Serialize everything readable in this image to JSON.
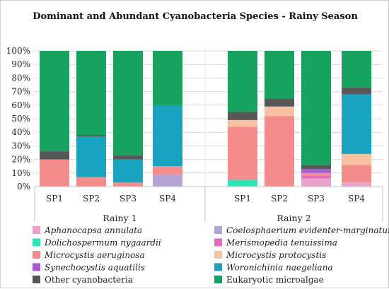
{
  "chart_data": {
    "type": "bar",
    "stacked": true,
    "normalized": true,
    "title": "Dominant and Abundant Cyanobacteria Species - Rainy Season",
    "ylim": [
      0,
      100
    ],
    "yticks": [
      "0%",
      "10%",
      "20%",
      "30%",
      "40%",
      "50%",
      "60%",
      "70%",
      "80%",
      "90%",
      "100%"
    ],
    "groups": [
      {
        "label": "Rainy 1",
        "categories": [
          "SP1",
          "SP2",
          "SP3",
          "SP4"
        ]
      },
      {
        "label": "Rainy 2",
        "categories": [
          "SP1",
          "SP2",
          "SP3",
          "SP4"
        ]
      }
    ],
    "legend_position": "bottom",
    "series": [
      {
        "name": "Aphanocapsa annulata",
        "italic": true,
        "color": "#e8a3cc",
        "values": [
          0,
          0,
          0,
          0,
          0,
          0,
          6,
          3
        ]
      },
      {
        "name": "Coelosphaerium evidenter-marginatum",
        "italic": true,
        "color": "#b3a4d4",
        "values": [
          0,
          0,
          0,
          9,
          0,
          0,
          0,
          0
        ]
      },
      {
        "name": "Dolichospermum nygaardii",
        "italic": true,
        "color": "#2ee3b6",
        "values": [
          0,
          0,
          0,
          0,
          5,
          0,
          0,
          0
        ]
      },
      {
        "name": "Merismopedia tenuissima",
        "italic": true,
        "color": "#e36bc4",
        "values": [
          0,
          0,
          0,
          0,
          0,
          0,
          2,
          0
        ]
      },
      {
        "name": "Microcystis aeruginosa",
        "italic": true,
        "color": "#f48c8c",
        "values": [
          20,
          7,
          3,
          6,
          39,
          52,
          2,
          13
        ]
      },
      {
        "name": "Microcystis protocystis",
        "italic": true,
        "color": "#f8c2a2",
        "values": [
          0,
          0,
          0,
          0,
          5,
          7,
          0,
          8
        ]
      },
      {
        "name": "Synechocystis aquatilis",
        "italic": true,
        "color": "#a55cd2",
        "values": [
          0,
          0,
          0,
          0,
          0,
          0,
          3,
          0
        ]
      },
      {
        "name": "Woronichinia naegeliana",
        "italic": true,
        "color": "#1aa3c0",
        "values": [
          0,
          30,
          17,
          45,
          0,
          0,
          0,
          44
        ]
      },
      {
        "name": "Other cyanobacteria",
        "italic": false,
        "color": "#585858",
        "values": [
          6,
          1,
          3,
          0,
          6,
          6,
          3,
          5
        ]
      },
      {
        "name": "Eukaryotic microalgae",
        "italic": false,
        "color": "#17a35f",
        "values": [
          74,
          62,
          77,
          40,
          45,
          35,
          84,
          27
        ]
      }
    ]
  }
}
